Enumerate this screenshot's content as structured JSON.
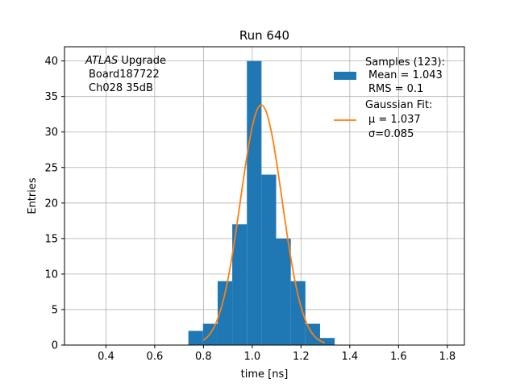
{
  "chart_data": {
    "type": "bar",
    "title": "Run 640",
    "xlabel": "time [ns]",
    "ylabel": "Entries",
    "xlim": [
      0.23,
      1.87
    ],
    "ylim": [
      0,
      42
    ],
    "xticks": [
      0.4,
      0.6,
      0.8,
      1.0,
      1.2,
      1.4,
      1.6,
      1.8
    ],
    "xtick_labels": [
      "0.4",
      "0.6",
      "0.8",
      "1.0",
      "1.2",
      "1.4",
      "1.6",
      "1.8"
    ],
    "yticks": [
      0,
      5,
      10,
      15,
      20,
      25,
      30,
      35,
      40
    ],
    "ytick_labels": [
      "0",
      "5",
      "10",
      "15",
      "20",
      "25",
      "30",
      "35",
      "40"
    ],
    "grid": true,
    "legend_position": "top-right",
    "annotation": {
      "line1_italic": "ATLAS",
      "line1_rest": " Upgrade",
      "line2": "Board187722",
      "line3": "Ch028 35dB"
    },
    "histogram": {
      "name": "Samples (123):",
      "mean_label": "Mean = 1.043",
      "rms_label": "RMS = 0.1",
      "color": "#1f77b4",
      "bins": [
        {
          "x0": 0.738,
          "x1": 0.798,
          "count": 2
        },
        {
          "x0": 0.798,
          "x1": 0.858,
          "count": 3
        },
        {
          "x0": 0.858,
          "x1": 0.918,
          "count": 9
        },
        {
          "x0": 0.918,
          "x1": 0.978,
          "count": 17
        },
        {
          "x0": 0.978,
          "x1": 1.038,
          "count": 40
        },
        {
          "x0": 1.038,
          "x1": 1.098,
          "count": 24
        },
        {
          "x0": 1.098,
          "x1": 1.158,
          "count": 15
        },
        {
          "x0": 1.158,
          "x1": 1.218,
          "count": 9
        },
        {
          "x0": 1.218,
          "x1": 1.278,
          "count": 3
        },
        {
          "x0": 1.278,
          "x1": 1.338,
          "count": 1
        }
      ]
    },
    "fit": {
      "name": "Gaussian Fit:",
      "mu_label": "μ = 1.037",
      "sigma_label": "σ=0.085",
      "color": "#ff7f0e",
      "mu": 1.037,
      "sigma": 0.085,
      "amplitude": 33.8,
      "x_range": [
        0.798,
        1.298
      ]
    }
  }
}
